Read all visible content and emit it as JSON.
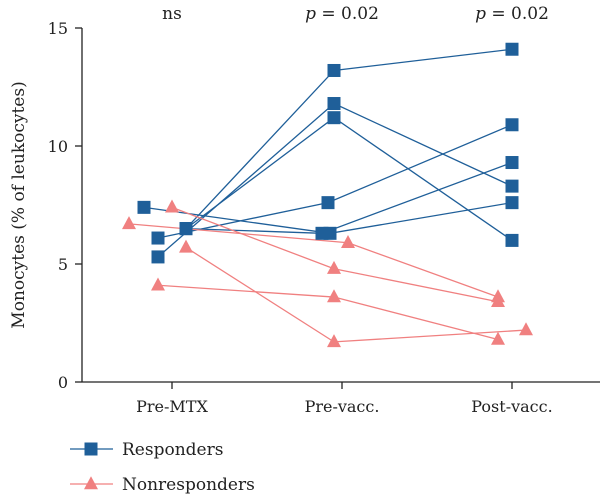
{
  "chart_data": {
    "type": "line",
    "ylabel": "Monocytes (% of leukocytes)",
    "xlabel": "",
    "ylim": [
      0,
      15
    ],
    "yticks": [
      0,
      5,
      10,
      15
    ],
    "categories": [
      "Pre-MTX",
      "Pre-vacc.",
      "Post-vacc."
    ],
    "significance": [
      {
        "category": "Pre-MTX",
        "text": "ns"
      },
      {
        "category": "Pre-vacc.",
        "text": "p = 0.02"
      },
      {
        "category": "Post-vacc.",
        "text": "p = 0.02"
      }
    ],
    "legend": {
      "position": "bottom-left"
    },
    "groups": [
      {
        "name": "Responders",
        "color": "#1f5f99",
        "marker": "square",
        "subjects": [
          {
            "values": [
              7.4,
              6.3,
              7.6
            ]
          },
          {
            "values": [
              6.1,
              7.6,
              10.9
            ]
          },
          {
            "values": [
              5.3,
              11.8,
              8.3
            ]
          },
          {
            "values": [
              6.5,
              11.2,
              6.0
            ]
          },
          {
            "values": [
              6.5,
              13.2,
              14.1
            ]
          },
          {
            "values": [
              6.5,
              6.3,
              9.3
            ]
          }
        ]
      },
      {
        "name": "Nonresponders",
        "color": "#f08080",
        "marker": "triangle",
        "subjects": [
          {
            "values": [
              6.7,
              5.9,
              3.6
            ]
          },
          {
            "values": [
              7.4,
              4.8,
              3.4
            ]
          },
          {
            "values": [
              4.1,
              3.6,
              1.8
            ]
          },
          {
            "values": [
              5.7,
              1.7,
              2.2
            ]
          }
        ]
      }
    ]
  }
}
